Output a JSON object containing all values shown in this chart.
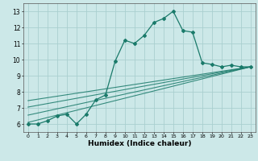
{
  "xlabel": "Humidex (Indice chaleur)",
  "ylabel": "",
  "xlim": [
    -0.5,
    23.5
  ],
  "ylim": [
    5.5,
    13.5
  ],
  "xticks": [
    0,
    1,
    2,
    3,
    4,
    5,
    6,
    7,
    8,
    9,
    10,
    11,
    12,
    13,
    14,
    15,
    16,
    17,
    18,
    19,
    20,
    21,
    22,
    23
  ],
  "yticks": [
    6,
    7,
    8,
    9,
    10,
    11,
    12,
    13
  ],
  "bg_color": "#cce8e8",
  "grid_color": "#aacfcf",
  "line_color": "#1a7a6a",
  "data_line": [
    [
      0,
      6.0
    ],
    [
      1,
      6.0
    ],
    [
      2,
      6.2
    ],
    [
      3,
      6.5
    ],
    [
      4,
      6.6
    ],
    [
      5,
      6.0
    ],
    [
      6,
      6.6
    ],
    [
      7,
      7.5
    ],
    [
      8,
      7.8
    ],
    [
      9,
      9.9
    ],
    [
      10,
      11.2
    ],
    [
      11,
      11.0
    ],
    [
      12,
      11.5
    ],
    [
      13,
      12.3
    ],
    [
      14,
      12.55
    ],
    [
      15,
      13.0
    ],
    [
      16,
      11.8
    ],
    [
      17,
      11.7
    ],
    [
      18,
      9.8
    ],
    [
      19,
      9.7
    ],
    [
      20,
      9.55
    ],
    [
      21,
      9.65
    ],
    [
      22,
      9.55
    ],
    [
      23,
      9.55
    ]
  ],
  "trend_lines": [
    [
      [
        0,
        6.1
      ],
      [
        23,
        9.55
      ]
    ],
    [
      [
        0,
        6.55
      ],
      [
        23,
        9.55
      ]
    ],
    [
      [
        0,
        7.05
      ],
      [
        23,
        9.55
      ]
    ],
    [
      [
        0,
        7.45
      ],
      [
        23,
        9.55
      ]
    ]
  ],
  "figsize": [
    3.2,
    2.0
  ],
  "dpi": 100
}
